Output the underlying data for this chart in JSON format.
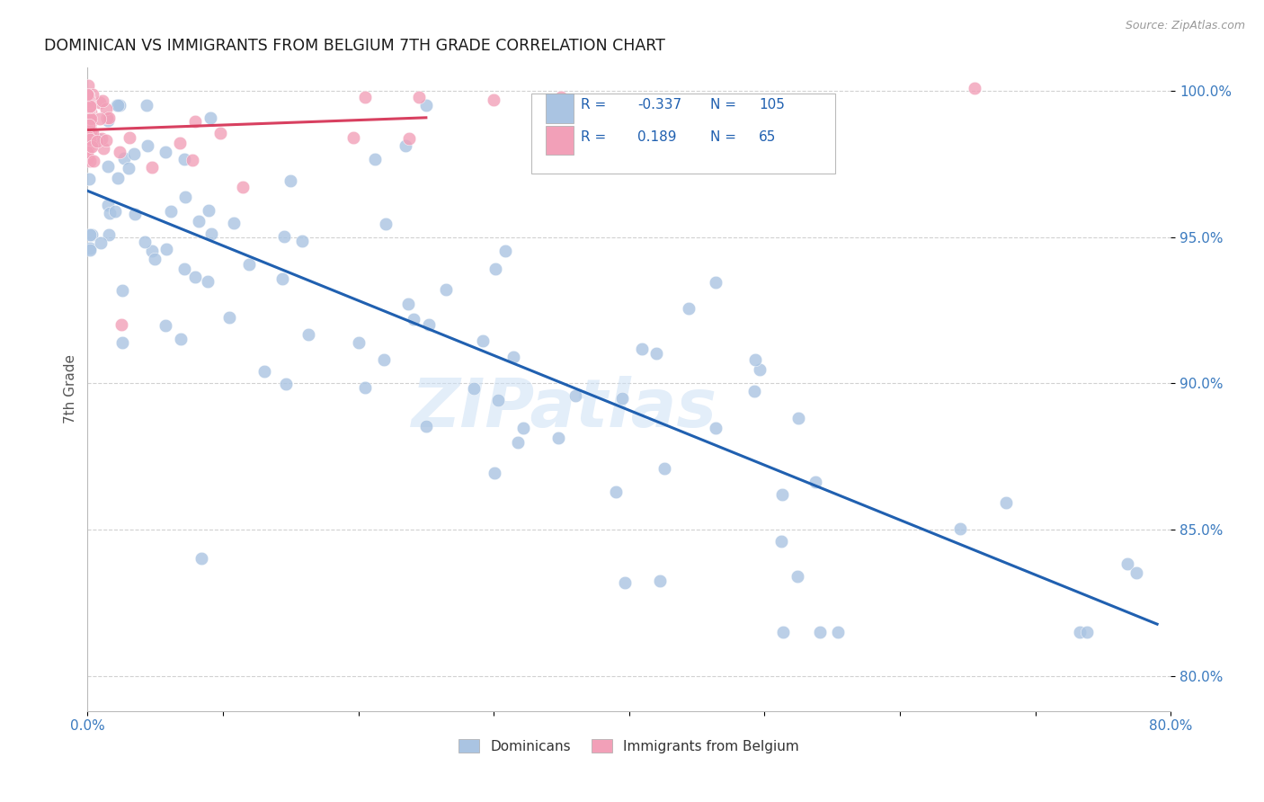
{
  "title": "DOMINICAN VS IMMIGRANTS FROM BELGIUM 7TH GRADE CORRELATION CHART",
  "source": "Source: ZipAtlas.com",
  "ylabel": "7th Grade",
  "xlim": [
    0.0,
    0.8
  ],
  "ylim": [
    0.788,
    1.008
  ],
  "x_tick_positions": [
    0.0,
    0.1,
    0.2,
    0.3,
    0.4,
    0.5,
    0.6,
    0.7,
    0.8
  ],
  "x_tick_labels": [
    "0.0%",
    "",
    "",
    "",
    "",
    "",
    "",
    "",
    "80.0%"
  ],
  "y_tick_positions": [
    0.8,
    0.85,
    0.9,
    0.95,
    1.0
  ],
  "y_tick_labels": [
    "80.0%",
    "85.0%",
    "90.0%",
    "95.0%",
    "100.0%"
  ],
  "blue_R": -0.337,
  "blue_N": 105,
  "pink_R": 0.189,
  "pink_N": 65,
  "blue_color": "#aac4e2",
  "pink_color": "#f2a0b8",
  "blue_line_color": "#2060b0",
  "pink_line_color": "#d84060",
  "watermark": "ZIPatlas",
  "background_color": "#ffffff",
  "grid_color": "#cccccc",
  "tick_color": "#3a7abf",
  "title_color": "#1a1a1a",
  "label_color": "#555555",
  "legend_text_color": "#2060b0"
}
